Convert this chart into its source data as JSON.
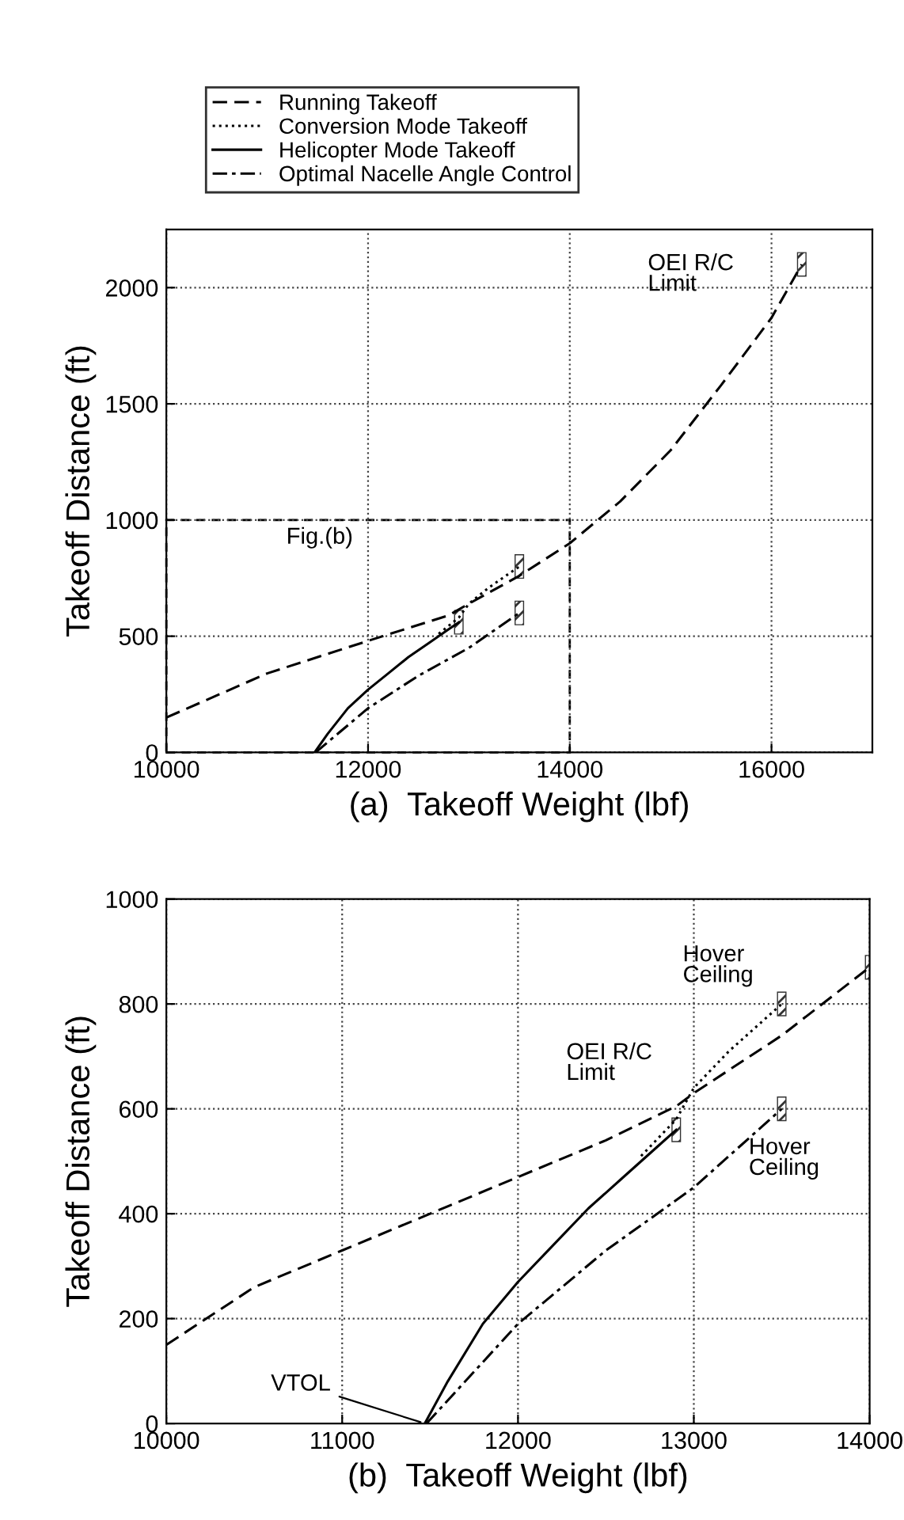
{
  "chart_data": [
    {
      "type": "line",
      "xlabel": "(a)  Takeoff Weight (lbf)",
      "ylabel": "Takeoff Distance (ft)",
      "xlim": [
        10000,
        17000
      ],
      "ylim": [
        0,
        2250
      ],
      "xticks": [
        10000,
        12000,
        14000,
        16000
      ],
      "yticks": [
        0,
        500,
        1000,
        1500,
        2000
      ],
      "grid": true,
      "legend": "top",
      "series": [
        {
          "name": "Running Takeoff",
          "color": "#000000",
          "line_style": "dashed",
          "x": [
            10000,
            11000,
            12000,
            12800,
            13000,
            13500,
            14000,
            14500,
            15000,
            15500,
            16000,
            16300
          ],
          "values": [
            150,
            340,
            480,
            590,
            640,
            760,
            900,
            1080,
            1300,
            1580,
            1870,
            2100
          ]
        },
        {
          "name": "Conversion Mode Takeoff",
          "color": "#000000",
          "line_style": "dotted",
          "x": [
            12700,
            12900,
            13000,
            13200,
            13500
          ],
          "values": [
            510,
            580,
            640,
            710,
            800
          ]
        },
        {
          "name": "Helicopter Mode Takeoff",
          "color": "#000000",
          "line_style": "solid",
          "x": [
            11470,
            11600,
            11800,
            12000,
            12200,
            12400,
            12600,
            12800,
            12900
          ],
          "values": [
            0,
            80,
            190,
            270,
            340,
            410,
            470,
            530,
            560
          ]
        },
        {
          "name": "Optimal Nacelle Angle Control",
          "color": "#000000",
          "line_style": "dashdot",
          "x": [
            11480,
            12000,
            12500,
            13000,
            13500
          ],
          "values": [
            0,
            190,
            330,
            450,
            600
          ]
        }
      ],
      "annotations": [
        {
          "text": "OEI R/C\nLimit",
          "x": 16300,
          "y": 2100
        },
        "Fig.(b)"
      ]
    },
    {
      "type": "line",
      "xlabel": "(b)  Takeoff Weight (lbf)",
      "ylabel": "Takeoff Distance (ft)",
      "xlim": [
        10000,
        14000
      ],
      "ylim": [
        0,
        1000
      ],
      "xticks": [
        10000,
        11000,
        12000,
        13000,
        14000
      ],
      "yticks": [
        0,
        200,
        400,
        600,
        800,
        1000
      ],
      "grid": true,
      "series": [
        {
          "color": "#000000",
          "line_style": "dashed",
          "x": [
            10000,
            10500,
            11000,
            11500,
            12000,
            12500,
            12900,
            13000,
            13500,
            14000
          ],
          "values": [
            150,
            260,
            330,
            400,
            470,
            540,
            605,
            630,
            740,
            870
          ]
        },
        {
          "color": "#000000",
          "line_style": "dotted",
          "x": [
            12700,
            12900,
            13000,
            13200,
            13500
          ],
          "values": [
            510,
            580,
            640,
            710,
            800
          ]
        },
        {
          "color": "#000000",
          "line_style": "solid",
          "x": [
            11470,
            11600,
            11800,
            12000,
            12200,
            12400,
            12600,
            12800,
            12900
          ],
          "values": [
            0,
            80,
            190,
            270,
            340,
            410,
            470,
            530,
            560
          ]
        },
        {
          "color": "#000000",
          "line_style": "dashdot",
          "x": [
            11480,
            12000,
            12500,
            13000,
            13500
          ],
          "values": [
            0,
            190,
            330,
            450,
            600
          ]
        }
      ],
      "annotations": [
        {
          "text": "Hover\nCeiling",
          "x": 13500,
          "y": 800
        },
        {
          "text": "OEI R/C\nLimit",
          "x": 12900,
          "y": 605
        },
        {
          "text": "Hover\nCeiling",
          "x": 13500,
          "y": 600
        },
        {
          "text": "VTOL",
          "x": 11470,
          "y": 0
        }
      ]
    }
  ]
}
